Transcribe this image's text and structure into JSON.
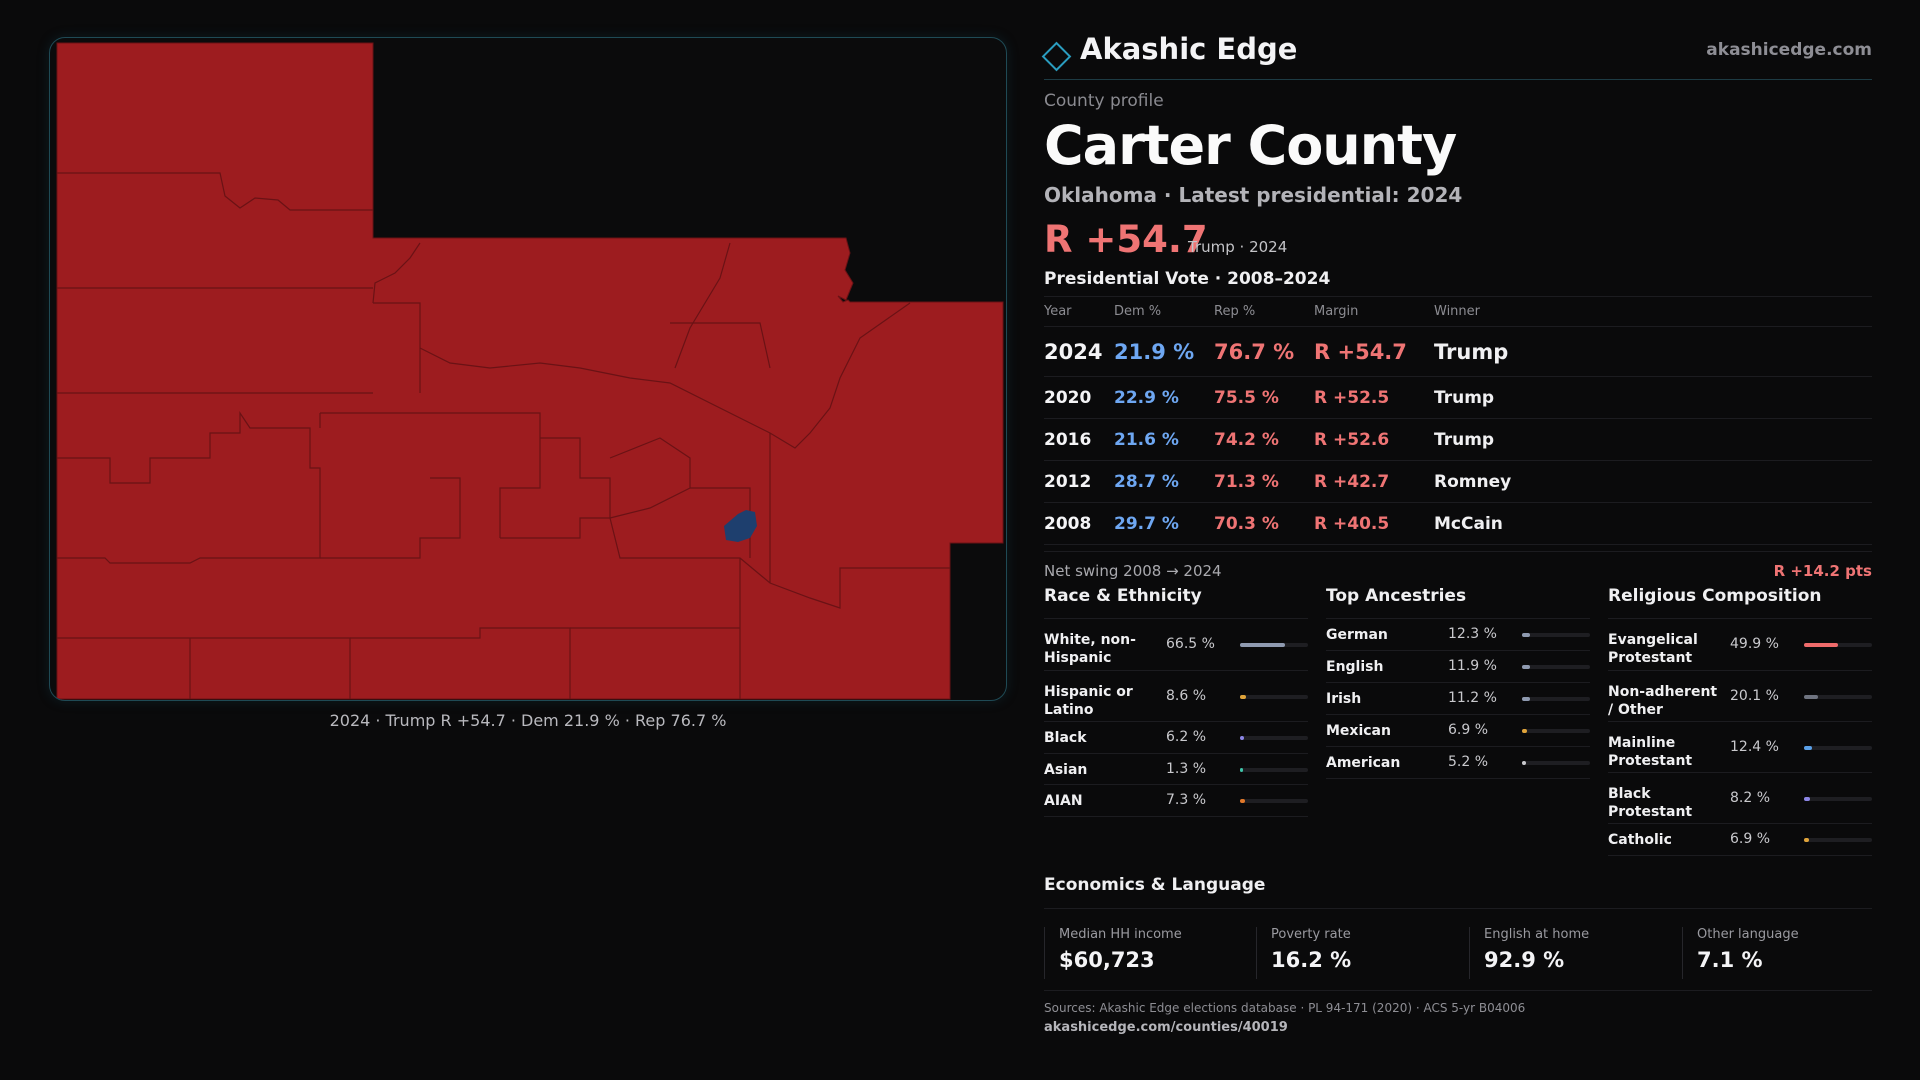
{
  "brand": {
    "name": "Akashic Edge",
    "site": "akashicedge.com",
    "accent": "#2a9dc0"
  },
  "map": {
    "caption": "2024 · Trump R +54.7 · Dem 21.9 % · Rep 76.7 %",
    "colors": {
      "rep": "#9d1c1f",
      "dem": "#1e3f6e",
      "background": "#0b0b0c",
      "border": "#6a1215"
    }
  },
  "profile": {
    "kicker": "County profile",
    "title": "Carter County",
    "subtitle": "Oklahoma · Latest presidential: 2024",
    "headline_margin": "R +54.7",
    "headline_note": "Trump · 2024"
  },
  "vote": {
    "title": "Presidential Vote · 2008–2024",
    "headers": {
      "year": "Year",
      "dem": "Dem %",
      "rep": "Rep %",
      "margin": "Margin",
      "winner": "Winner"
    },
    "rows": [
      {
        "year": "2024",
        "dem": "21.9 %",
        "rep": "76.7 %",
        "margin": "R +54.7",
        "winner": "Trump"
      },
      {
        "year": "2020",
        "dem": "22.9 %",
        "rep": "75.5 %",
        "margin": "R +52.5",
        "winner": "Trump"
      },
      {
        "year": "2016",
        "dem": "21.6 %",
        "rep": "74.2 %",
        "margin": "R +52.6",
        "winner": "Trump"
      },
      {
        "year": "2012",
        "dem": "28.7 %",
        "rep": "71.3 %",
        "margin": "R +42.7",
        "winner": "Romney"
      },
      {
        "year": "2008",
        "dem": "29.7 %",
        "rep": "70.3 %",
        "margin": "R +40.5",
        "winner": "McCain"
      }
    ],
    "swing_label": "Net swing 2008 → 2024",
    "swing_value": "R +14.2 pts"
  },
  "race": {
    "title": "Race & Ethnicity",
    "items": [
      {
        "name": "White, non-Hispanic",
        "pct": "66.5 %",
        "share": 0.665,
        "color": "#8f9ab0"
      },
      {
        "name": "Hispanic or Latino",
        "pct": "8.6 %",
        "share": 0.086,
        "color": "#e0a43a"
      },
      {
        "name": "Black",
        "pct": "6.2 %",
        "share": 0.062,
        "color": "#8c86e6"
      },
      {
        "name": "Asian",
        "pct": "1.3 %",
        "share": 0.013,
        "color": "#3fc3a8"
      },
      {
        "name": "AIAN",
        "pct": "7.3 %",
        "share": 0.073,
        "color": "#e0782a"
      }
    ]
  },
  "ancestry": {
    "title": "Top Ancestries",
    "items": [
      {
        "name": "German",
        "pct": "12.3 %",
        "share": 0.123,
        "color": "#8f9ab0"
      },
      {
        "name": "English",
        "pct": "11.9 %",
        "share": 0.119,
        "color": "#8f9ab0"
      },
      {
        "name": "Irish",
        "pct": "11.2 %",
        "share": 0.112,
        "color": "#8f9ab0"
      },
      {
        "name": "Mexican",
        "pct": "6.9 %",
        "share": 0.069,
        "color": "#e0a43a"
      },
      {
        "name": "American",
        "pct": "5.2 %",
        "share": 0.052,
        "color": "#c9c9cd"
      }
    ]
  },
  "religion": {
    "title": "Religious Composition",
    "items": [
      {
        "name": "Evangelical Protestant",
        "pct": "49.9 %",
        "share": 0.499,
        "color": "#ef6b6b"
      },
      {
        "name": "Non-adherent / Other",
        "pct": "20.1 %",
        "share": 0.201,
        "color": "#6f7480"
      },
      {
        "name": "Mainline Protestant",
        "pct": "12.4 %",
        "share": 0.124,
        "color": "#5aa0e8"
      },
      {
        "name": "Black Protestant",
        "pct": "8.2 %",
        "share": 0.082,
        "color": "#8c86e6"
      },
      {
        "name": "Catholic",
        "pct": "6.9 %",
        "share": 0.069,
        "color": "#e0a43a"
      }
    ]
  },
  "economics": {
    "title": "Economics & Language",
    "stats": [
      {
        "label": "Median HH income",
        "value": "$60,723"
      },
      {
        "label": "Poverty rate",
        "value": "16.2 %"
      },
      {
        "label": "English at home",
        "value": "92.9 %"
      },
      {
        "label": "Other language",
        "value": "7.1 %"
      }
    ]
  },
  "footer": {
    "sources": "Sources: Akashic Edge elections database · PL 94-171 (2020) · ACS 5-yr B04006",
    "url": "akashicedge.com/counties/40019"
  }
}
